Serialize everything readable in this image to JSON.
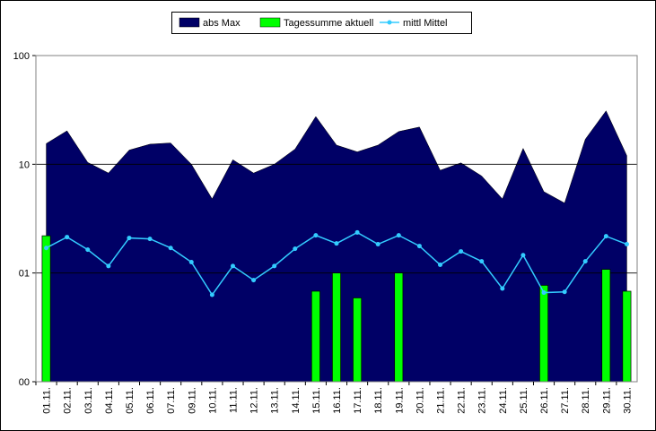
{
  "chart_data": {
    "type": "combo",
    "categories": [
      "01.11.",
      "02.11.",
      "03.11.",
      "04.11.",
      "05.11.",
      "06.11.",
      "07.11.",
      "09.11.",
      "10.11.",
      "11.11.",
      "12.11.",
      "13.11.",
      "14.11.",
      "15.11.",
      "16.11.",
      "17.11.",
      "18.11.",
      "19.11.",
      "20.11.",
      "21.11.",
      "22.11.",
      "23.11.",
      "24.11.",
      "25.11.",
      "26.11.",
      "27.11.",
      "28.11.",
      "29.11.",
      "30.11."
    ],
    "series": [
      {
        "name": "abs Max",
        "type": "area",
        "color": "#000066",
        "values": [
          15.5,
          20.3,
          10.4,
          8.3,
          13.5,
          15.3,
          15.7,
          10,
          4.8,
          11,
          8.3,
          10,
          13.8,
          27.5,
          15,
          13,
          15,
          20,
          22,
          8.8,
          10.3,
          7.8,
          4.8,
          14,
          5.6,
          4.4,
          17,
          31,
          12
        ]
      },
      {
        "name": "Tagessumme aktuell",
        "type": "bar",
        "color": "#00ff00",
        "values": [
          2.2,
          null,
          null,
          null,
          null,
          null,
          null,
          null,
          null,
          null,
          null,
          null,
          null,
          0.68,
          1.0,
          0.59,
          null,
          1.0,
          null,
          null,
          null,
          null,
          null,
          null,
          0.77,
          null,
          null,
          1.08,
          0.68
        ]
      },
      {
        "name": "mittl Mittel",
        "type": "line",
        "color": "#33ccff",
        "values": [
          1.7,
          2.14,
          1.64,
          1.16,
          2.1,
          2.06,
          1.7,
          1.26,
          0.63,
          1.16,
          0.86,
          1.16,
          1.67,
          2.22,
          1.87,
          2.36,
          1.84,
          2.22,
          1.77,
          1.19,
          1.58,
          1.28,
          0.72,
          1.46,
          0.66,
          0.67,
          1.28,
          2.18,
          1.84
        ]
      }
    ],
    "ylim": [
      0.1,
      100
    ],
    "log_scale": true,
    "grid": true,
    "legend": "top",
    "yticks": [
      {
        "value": 0.1,
        "label": "00"
      },
      {
        "value": 1,
        "label": "01"
      },
      10,
      100
    ]
  }
}
